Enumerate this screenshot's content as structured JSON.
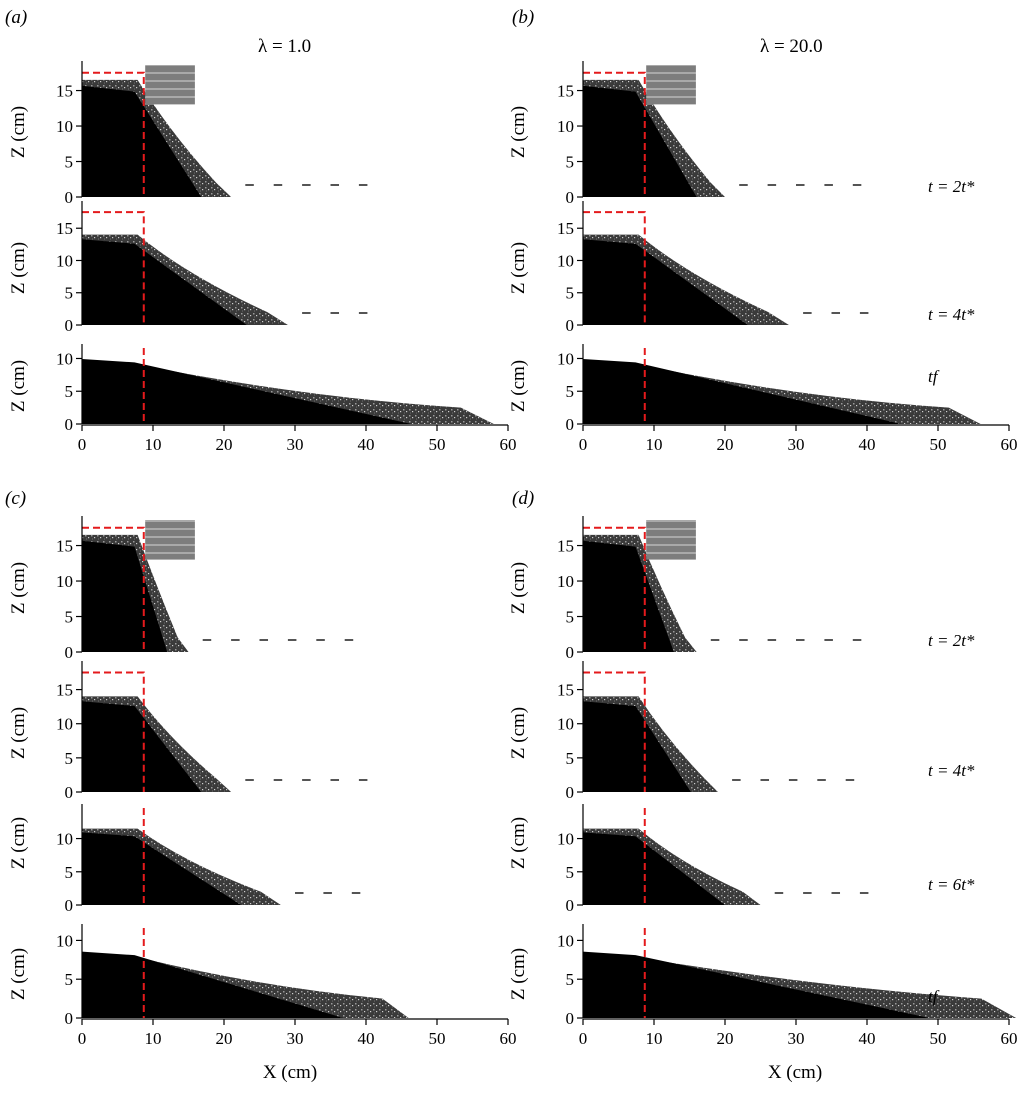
{
  "panels": [
    {
      "label": "(a)",
      "lambda_title": "λ = 1.0"
    },
    {
      "label": "(b)",
      "lambda_title": "λ = 20.0"
    },
    {
      "label": "(c)",
      "lambda_title": ""
    },
    {
      "label": "(d)",
      "lambda_title": ""
    }
  ],
  "axis_labels": {
    "z": "Z (cm)",
    "x": "X (cm)"
  },
  "time_labels_top": [
    "t = 2t*",
    "t = 4t*",
    "tf"
  ],
  "time_labels_bottom": [
    "t = 2t*",
    "t = 4t*",
    "t = 6t*",
    "tf"
  ],
  "x_ticks": [
    "0",
    "10",
    "20",
    "30",
    "40",
    "50",
    "60"
  ],
  "z_ticks_tall": [
    "0",
    "5",
    "10",
    "15"
  ],
  "z_ticks_short": [
    "0",
    "5",
    "10"
  ],
  "colors": {
    "initial_column_outline": "#e41a1c",
    "granular_material": "#000000"
  },
  "chart_data": [
    {
      "type": "image-sequence",
      "panel": "(a)",
      "title": "λ = 1.0",
      "xlabel": "X (cm)",
      "ylabel": "Z (cm)",
      "xlim": [
        0,
        60
      ],
      "initial_column": {
        "width_cm": 8.7,
        "height_cm": 17.5
      },
      "frames": [
        {
          "time": "t = 2t*",
          "ylim": [
            0,
            18
          ],
          "front_cm": 21
        },
        {
          "time": "t = 4t*",
          "ylim": [
            0,
            18
          ],
          "front_cm": 29
        },
        {
          "time": "tf",
          "ylim": [
            0,
            10
          ],
          "front_cm": 58
        }
      ]
    },
    {
      "type": "image-sequence",
      "panel": "(b)",
      "title": "λ = 20.0",
      "xlabel": "X (cm)",
      "ylabel": "Z (cm)",
      "xlim": [
        0,
        60
      ],
      "initial_column": {
        "width_cm": 8.7,
        "height_cm": 17.5
      },
      "frames": [
        {
          "time": "t = 2t*",
          "ylim": [
            0,
            18
          ],
          "front_cm": 20
        },
        {
          "time": "t = 4t*",
          "ylim": [
            0,
            18
          ],
          "front_cm": 29
        },
        {
          "time": "tf",
          "ylim": [
            0,
            10
          ],
          "front_cm": 56
        }
      ]
    },
    {
      "type": "image-sequence",
      "panel": "(c)",
      "xlabel": "X (cm)",
      "ylabel": "Z (cm)",
      "xlim": [
        0,
        60
      ],
      "initial_column": {
        "width_cm": 8.7,
        "height_cm": 17.5
      },
      "frames": [
        {
          "time": "t = 2t*",
          "ylim": [
            0,
            18
          ],
          "front_cm": 15
        },
        {
          "time": "t = 4t*",
          "ylim": [
            0,
            18
          ],
          "front_cm": 21
        },
        {
          "time": "t = 6t*",
          "ylim": [
            0,
            14
          ],
          "front_cm": 28
        },
        {
          "time": "tf",
          "ylim": [
            0,
            11
          ],
          "front_cm": 46
        }
      ]
    },
    {
      "type": "image-sequence",
      "panel": "(d)",
      "xlabel": "X (cm)",
      "ylabel": "Z (cm)",
      "xlim": [
        0,
        60
      ],
      "initial_column": {
        "width_cm": 8.7,
        "height_cm": 17.5
      },
      "frames": [
        {
          "time": "t = 2t*",
          "ylim": [
            0,
            18
          ],
          "front_cm": 16
        },
        {
          "time": "t = 4t*",
          "ylim": [
            0,
            18
          ],
          "front_cm": 19
        },
        {
          "time": "t = 6t*",
          "ylim": [
            0,
            14
          ],
          "front_cm": 25
        },
        {
          "time": "tf",
          "ylim": [
            0,
            11
          ],
          "front_cm": 61
        }
      ]
    }
  ]
}
